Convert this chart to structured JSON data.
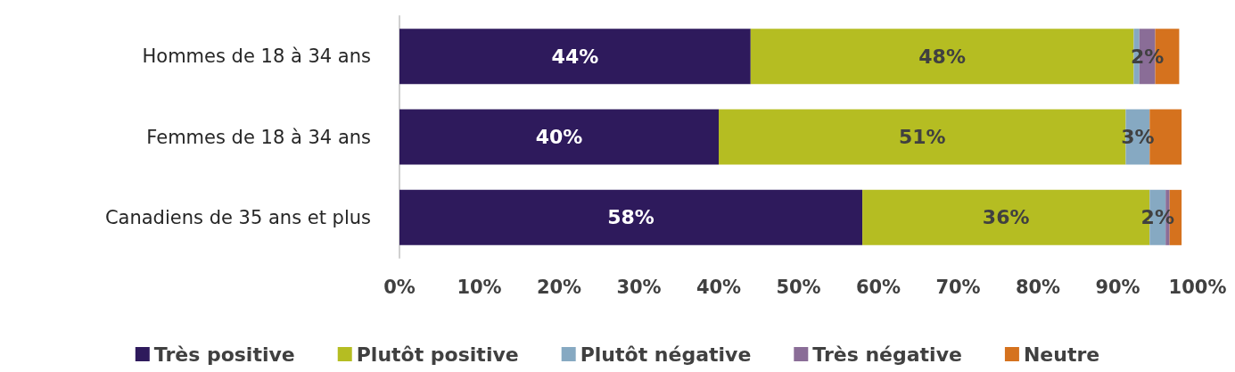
{
  "chart_data": {
    "type": "bar",
    "orientation": "horizontal",
    "stacked": true,
    "categories": [
      "Hommes de 18 à 34 ans",
      "Femmes de 18 à 34 ans",
      "Canadiens de 35 ans et plus"
    ],
    "series": [
      {
        "name": "Très positive",
        "color": "#2e1a5c",
        "values": [
          44,
          40,
          58
        ],
        "value_labels": [
          "44%",
          "40%",
          "58%"
        ]
      },
      {
        "name": "Plutôt positive",
        "color": "#b5bd22",
        "values": [
          48,
          51,
          36
        ],
        "value_labels": [
          "48%",
          "51%",
          "36%"
        ]
      },
      {
        "name": "Plutôt négative",
        "color": "#86a9c2",
        "values": [
          0.7,
          3,
          2
        ],
        "value_labels": [
          null,
          "3%",
          "2%"
        ]
      },
      {
        "name": "Très négative",
        "color": "#8a6d97",
        "values": [
          2,
          0,
          0.5
        ],
        "value_labels": [
          "2%",
          null,
          null
        ]
      },
      {
        "name": "Neutre",
        "color": "#d5721e",
        "values": [
          3,
          4,
          1.5
        ],
        "value_labels": [
          null,
          null,
          null
        ]
      }
    ],
    "xlim": [
      0,
      100
    ],
    "xticks": [
      {
        "value": 0,
        "label": "0%"
      },
      {
        "value": 10,
        "label": "10%"
      },
      {
        "value": 20,
        "label": "20%"
      },
      {
        "value": 30,
        "label": "30%"
      },
      {
        "value": 40,
        "label": "40%"
      },
      {
        "value": 50,
        "label": "50%"
      },
      {
        "value": 60,
        "label": "60%"
      },
      {
        "value": 70,
        "label": "70%"
      },
      {
        "value": 80,
        "label": "80%"
      },
      {
        "value": 90,
        "label": "90%"
      },
      {
        "value": 100,
        "label": "100%"
      }
    ],
    "grid": false,
    "legend": "bottom"
  }
}
